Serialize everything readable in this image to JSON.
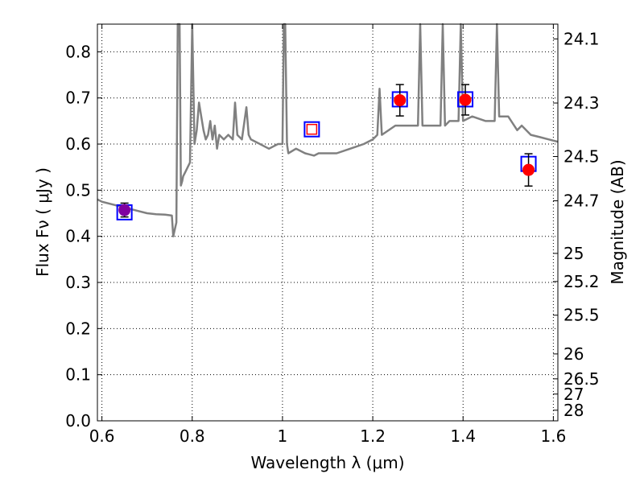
{
  "chart_data": {
    "type": "scatter",
    "title": "",
    "xlabel": "Wavelength  λ (μm)",
    "ylabel": "Flux  Fν  ( μJy )",
    "ylabel_right": "Magnitude (AB)",
    "xlim": [
      0.59,
      1.61
    ],
    "ylim": [
      0.0,
      0.86
    ],
    "grid": true,
    "x_ticks": [
      0.6,
      0.8,
      1.0,
      1.2,
      1.4,
      1.6
    ],
    "x_tick_labels": [
      "0.6",
      "0.8",
      "1",
      "1.2",
      "1.4",
      "1.6"
    ],
    "y_ticks": [
      0.0,
      0.1,
      0.2,
      0.3,
      0.4,
      0.5,
      0.6,
      0.7,
      0.8
    ],
    "y_tick_labels": [
      "0.0",
      "0.1",
      "0.2",
      "0.3",
      "0.4",
      "0.5",
      "0.6",
      "0.7",
      "0.8"
    ],
    "mag_ticks": [
      {
        "label": "24.1",
        "flux": 0.828
      },
      {
        "label": "24.3",
        "flux": 0.689
      },
      {
        "label": "24.5",
        "flux": 0.573
      },
      {
        "label": "24.7",
        "flux": 0.477
      },
      {
        "label": "25",
        "flux": 0.363
      },
      {
        "label": "25.2",
        "flux": 0.302
      },
      {
        "label": "25.5",
        "flux": 0.229
      },
      {
        "label": "26",
        "flux": 0.145
      },
      {
        "label": "26.5",
        "flux": 0.091
      },
      {
        "label": "27",
        "flux": 0.058
      },
      {
        "label": "28",
        "flux": 0.023
      }
    ],
    "series": [
      {
        "name": "model spectrum",
        "style": "line",
        "color": "#808080",
        "x": [
          0.59,
          0.6,
          0.62,
          0.64,
          0.66,
          0.68,
          0.7,
          0.72,
          0.74,
          0.755,
          0.758,
          0.765,
          0.768,
          0.772,
          0.775,
          0.778,
          0.78,
          0.785,
          0.79,
          0.795,
          0.8,
          0.805,
          0.81,
          0.815,
          0.82,
          0.825,
          0.83,
          0.835,
          0.84,
          0.845,
          0.85,
          0.855,
          0.86,
          0.87,
          0.88,
          0.89,
          0.895,
          0.9,
          0.91,
          0.92,
          0.925,
          0.93,
          0.95,
          0.97,
          0.99,
          1.0,
          1.003,
          1.006,
          1.01,
          1.013,
          1.03,
          1.05,
          1.07,
          1.08,
          1.1,
          1.12,
          1.15,
          1.18,
          1.2,
          1.21,
          1.215,
          1.22,
          1.25,
          1.28,
          1.3,
          1.305,
          1.31,
          1.33,
          1.35,
          1.355,
          1.36,
          1.37,
          1.39,
          1.395,
          1.4,
          1.42,
          1.45,
          1.47,
          1.475,
          1.48,
          1.5,
          1.52,
          1.53,
          1.55,
          1.57,
          1.59,
          1.61
        ],
        "y": [
          0.48,
          0.475,
          0.47,
          0.465,
          0.46,
          0.455,
          0.45,
          0.448,
          0.447,
          0.445,
          0.4,
          0.43,
          0.86,
          0.86,
          0.51,
          0.52,
          0.53,
          0.54,
          0.55,
          0.56,
          0.86,
          0.6,
          0.63,
          0.69,
          0.66,
          0.63,
          0.61,
          0.62,
          0.65,
          0.61,
          0.64,
          0.59,
          0.62,
          0.61,
          0.62,
          0.61,
          0.69,
          0.62,
          0.61,
          0.68,
          0.62,
          0.61,
          0.6,
          0.59,
          0.6,
          0.6,
          0.86,
          0.86,
          0.6,
          0.58,
          0.59,
          0.58,
          0.575,
          0.58,
          0.58,
          0.58,
          0.59,
          0.6,
          0.61,
          0.62,
          0.72,
          0.62,
          0.64,
          0.64,
          0.64,
          0.86,
          0.64,
          0.64,
          0.64,
          0.86,
          0.64,
          0.65,
          0.65,
          0.86,
          0.65,
          0.66,
          0.65,
          0.65,
          0.86,
          0.66,
          0.66,
          0.63,
          0.64,
          0.62,
          0.615,
          0.61,
          0.605
        ]
      },
      {
        "name": "synthetic photometry",
        "style": "open-square",
        "color": "#0000ff",
        "x": [
          0.65,
          1.065,
          1.26,
          1.405,
          1.545
        ],
        "y": [
          0.452,
          0.632,
          0.697,
          0.697,
          0.557
        ]
      },
      {
        "name": "observed photometry",
        "style": "circle-errorbar",
        "color": "#ff0000",
        "x": [
          0.65,
          1.26,
          1.405,
          1.545
        ],
        "y": [
          0.457,
          0.695,
          0.696,
          0.544
        ],
        "yerr": [
          0.015,
          0.034,
          0.033,
          0.035
        ],
        "point_colors": [
          "#8000a0",
          "#ff0000",
          "#ff0000",
          "#ff0000"
        ]
      }
    ]
  }
}
